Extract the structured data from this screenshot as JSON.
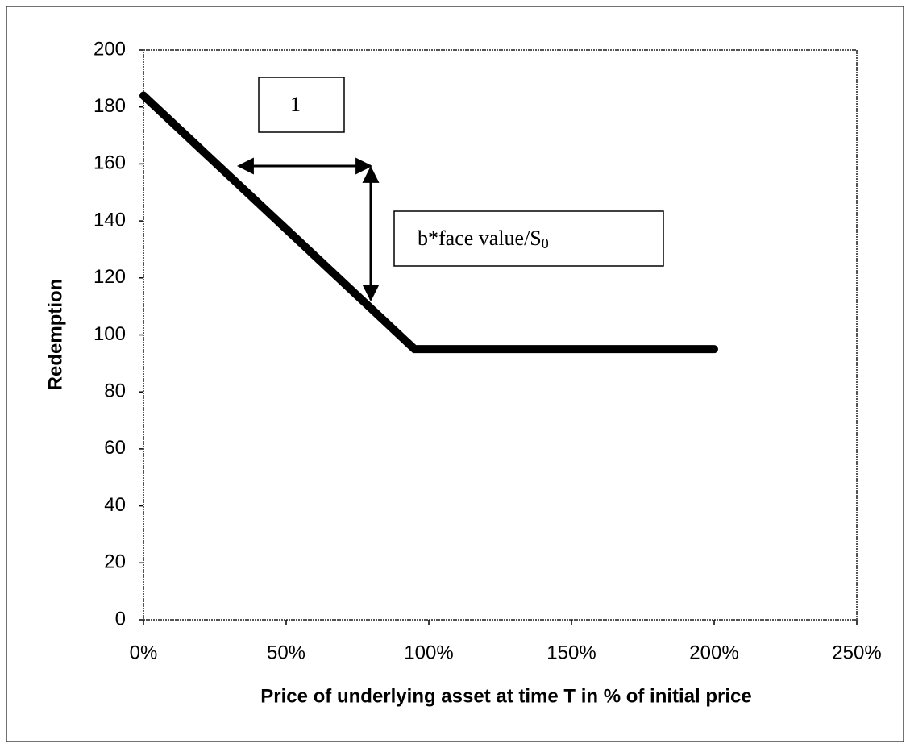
{
  "chart_data": {
    "type": "line",
    "x_label": "Price of underlying asset at time T in % of initial price",
    "y_label": "Redemption",
    "x": [
      0,
      95,
      200
    ],
    "series": [
      {
        "color": "#000000",
        "values": [
          184,
          95,
          95
        ]
      }
    ],
    "xlim": [
      0,
      250
    ],
    "xticks": [
      {
        "value": 0,
        "label": "0%"
      },
      {
        "value": 50,
        "label": "50%"
      },
      {
        "value": 100,
        "label": "100%"
      },
      {
        "value": 150,
        "label": "150%"
      },
      {
        "value": 200,
        "label": "200%"
      },
      {
        "value": 250,
        "label": "250%"
      }
    ],
    "ylim": [
      0,
      200
    ],
    "yticks": [
      0,
      20,
      40,
      60,
      80,
      100,
      120,
      140,
      160,
      180,
      200
    ],
    "annotations": [
      {
        "text": "1"
      },
      {
        "text": "b*face value/S",
        "subscript": "0"
      }
    ]
  }
}
